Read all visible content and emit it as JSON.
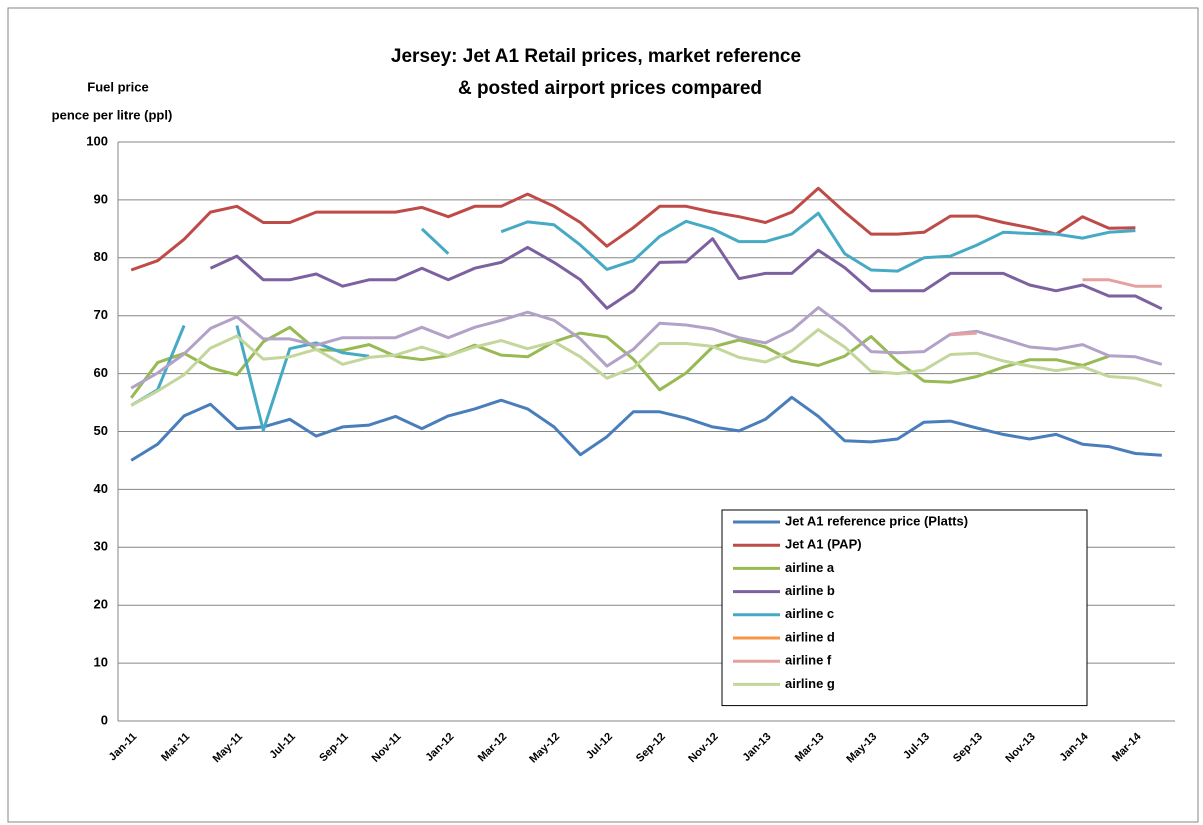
{
  "chart_data": {
    "type": "line",
    "title": [
      "Jersey: Jet A1 Retail prices, market reference",
      "& posted airport prices compared"
    ],
    "y_label": [
      "Fuel price",
      "pence per litre (ppl)"
    ],
    "categories": [
      "Jan-11",
      null,
      "Mar-11",
      null,
      "May-11",
      null,
      "Jul-11",
      null,
      "Sep-11",
      null,
      "Nov-11",
      null,
      "Jan-12",
      null,
      "Mar-12",
      null,
      "May-12",
      null,
      "Jul-12",
      null,
      "Sep-12",
      null,
      "Nov-12",
      null,
      "Jan-13",
      null,
      "Mar-13",
      null,
      "May-13",
      null,
      "Jul-13",
      null,
      "Sep-13",
      null,
      "Nov-13",
      null,
      "Jan-14",
      null,
      "Mar-14",
      null
    ],
    "ylim": [
      0,
      100
    ],
    "yticks": [
      0,
      10,
      20,
      30,
      40,
      50,
      60,
      70,
      80,
      90,
      100
    ],
    "grid": true,
    "legend": "lower right",
    "series": [
      {
        "name": "Jet A1 reference price (Platts)",
        "color": "#4a7ebb",
        "values": [
          45,
          47.8,
          52.7,
          54.7,
          50.5,
          50.8,
          52.1,
          49.2,
          50.8,
          51.1,
          52.6,
          50.5,
          52.7,
          53.9,
          55.4,
          53.9,
          50.8,
          46,
          49.1,
          53.4,
          53.4,
          52.3,
          50.8,
          50.1,
          52.1,
          55.9,
          52.6,
          48.4,
          48.2,
          48.7,
          51.6,
          51.8,
          50.6,
          49.5,
          48.7,
          49.5,
          47.8,
          47.4,
          46.2,
          45.9
        ]
      },
      {
        "name": "Jet A1 (PAP)",
        "color": "#be4b48",
        "values": [
          77.9,
          79.5,
          83.2,
          87.9,
          88.9,
          86.1,
          86.1,
          87.9,
          87.9,
          87.9,
          87.9,
          88.7,
          87.1,
          88.9,
          88.9,
          91,
          88.9,
          86.1,
          82,
          85.2,
          88.9,
          88.9,
          87.9,
          87.1,
          86.1,
          87.9,
          92,
          87.9,
          84.1,
          84.1,
          84.4,
          87.2,
          87.2,
          86.1,
          85.2,
          84.1,
          87.1,
          85.1,
          85.2,
          null
        ]
      },
      {
        "name": "airline a",
        "color": "#98b954",
        "values": [
          55.8,
          61.9,
          63.5,
          61,
          59.8,
          65.5,
          68,
          64.1,
          64,
          65,
          63,
          62.4,
          63.1,
          64.9,
          63.2,
          62.9,
          65.5,
          67,
          66.3,
          62.5,
          57.2,
          60.1,
          64.6,
          65.8,
          64.6,
          62.2,
          61.4,
          63,
          66.4,
          62.1,
          58.7,
          58.5,
          59.5,
          61.1,
          62.4,
          62.4,
          61.4,
          63,
          null,
          null
        ]
      },
      {
        "name": "airline b",
        "color": "#7d60a0",
        "values": [
          null,
          null,
          null,
          78.2,
          80.3,
          76.2,
          76.2,
          77.2,
          75.1,
          76.2,
          76.2,
          78.2,
          76.2,
          78.2,
          79.2,
          81.8,
          79.2,
          76.2,
          71.3,
          74.3,
          79.2,
          79.3,
          83.3,
          76.4,
          77.3,
          77.3,
          81.3,
          78.3,
          74.3,
          74.3,
          74.3,
          77.3,
          77.3,
          77.3,
          75.3,
          74.3,
          75.3,
          73.4,
          73.4,
          71.2
        ]
      },
      {
        "name": "airline c",
        "color": "#46aac5",
        "values": [
          54.5,
          57.2,
          68.3,
          null,
          68.3,
          50.2,
          64.3,
          65.3,
          63.6,
          63,
          null,
          85,
          80.7,
          null,
          84.5,
          86.2,
          85.7,
          82.2,
          78,
          79.5,
          83.7,
          86.3,
          85,
          82.8,
          82.8,
          84.1,
          87.7,
          80.7,
          77.9,
          77.7,
          80,
          80.3,
          82.2,
          84.4,
          84.2,
          84.1,
          83.4,
          84.4,
          84.7,
          null
        ]
      },
      {
        "name": "airline d",
        "color": "#f79646",
        "values": [
          null,
          null,
          null,
          null,
          null,
          null,
          null,
          null,
          null,
          null,
          null,
          null,
          null,
          null,
          null,
          null,
          null,
          null,
          null,
          null,
          null,
          null,
          null,
          null,
          null,
          null,
          null,
          null,
          null,
          null,
          null,
          null,
          null,
          null,
          null,
          null,
          null,
          null,
          null,
          null
        ]
      },
      {
        "color": "#b3a2c7",
        "values": [
          57.5,
          60.1,
          63.4,
          67.8,
          69.8,
          66,
          66,
          64.9,
          66.2,
          66.2,
          66.2,
          68,
          66.2,
          68,
          69.2,
          70.6,
          69.2,
          66,
          61.3,
          64.2,
          68.7,
          68.4,
          67.7,
          66.2,
          65.3,
          67.5,
          71.4,
          68,
          63.8,
          63.6,
          63.8,
          66.8,
          67.3,
          66,
          64.6,
          64.2,
          65,
          63.1,
          62.9,
          61.6
        ]
      },
      {
        "name": "airline f",
        "color": "#e6a0a0",
        "values": [
          null,
          null,
          null,
          null,
          null,
          null,
          null,
          null,
          null,
          null,
          null,
          null,
          null,
          null,
          null,
          null,
          null,
          null,
          null,
          null,
          null,
          null,
          null,
          null,
          null,
          null,
          null,
          null,
          null,
          null,
          null,
          66.7,
          67,
          null,
          null,
          null,
          76.2,
          76.2,
          75.1,
          75.1
        ]
      },
      {
        "name": "airline g",
        "color": "#c3d69b",
        "values": [
          54.5,
          57,
          59.8,
          64.4,
          66.5,
          62.5,
          62.9,
          64.2,
          61.6,
          62.8,
          63.2,
          64.6,
          63.1,
          64.6,
          65.7,
          64.3,
          65.5,
          62.9,
          59.2,
          61,
          65.2,
          65.2,
          64.7,
          62.8,
          62,
          63.9,
          67.6,
          64.6,
          60.4,
          60,
          60.6,
          63.3,
          63.5,
          62.2,
          61.3,
          60.5,
          61.2,
          59.5,
          59.2,
          57.9
        ]
      }
    ]
  }
}
